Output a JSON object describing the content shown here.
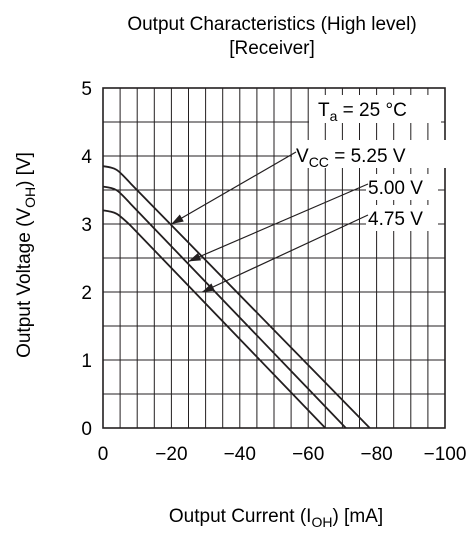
{
  "chart_data": {
    "type": "line",
    "title": "Output Characteristics (High level)",
    "subtitle": "[Receiver]",
    "xlabel": {
      "prefix": "Output Current (I",
      "sub": "OH",
      "suffix": ")   [mA]"
    },
    "ylabel": {
      "prefix": "Output Voltage (V",
      "sub": "OH",
      "suffix": ")   [V]"
    },
    "xlim": [
      0,
      -100
    ],
    "ylim": [
      0,
      5
    ],
    "x_ticks": [
      "0",
      "−20",
      "−40",
      "−60",
      "−80",
      "−100"
    ],
    "y_ticks": [
      "0",
      "1",
      "2",
      "3",
      "4",
      "5"
    ],
    "grid": true,
    "condition": {
      "prefix": "T",
      "sub": "a",
      "suffix": " = 25 °C"
    },
    "series": [
      {
        "name": "V_CC = 5.25 V",
        "points": [
          [
            0,
            3.85
          ],
          [
            -4,
            3.82
          ],
          [
            -8,
            3.6
          ],
          [
            -78,
            0
          ]
        ]
      },
      {
        "name": "5.00 V",
        "points": [
          [
            0,
            3.55
          ],
          [
            -4,
            3.52
          ],
          [
            -8,
            3.3
          ],
          [
            -71,
            0
          ]
        ]
      },
      {
        "name": "4.75 V",
        "points": [
          [
            0,
            3.2
          ],
          [
            -4,
            3.17
          ],
          [
            -8,
            2.98
          ],
          [
            -65,
            0
          ]
        ]
      }
    ],
    "annotations": [
      {
        "prefix": "V",
        "sub": "CC",
        "suffix": " = 5.25 V",
        "points_to": [
          -20,
          3.0
        ]
      },
      {
        "text": "5.00 V",
        "points_to": [
          -25,
          2.45
        ]
      },
      {
        "text": "4.75 V",
        "points_to": [
          -29,
          2.0
        ]
      }
    ]
  }
}
